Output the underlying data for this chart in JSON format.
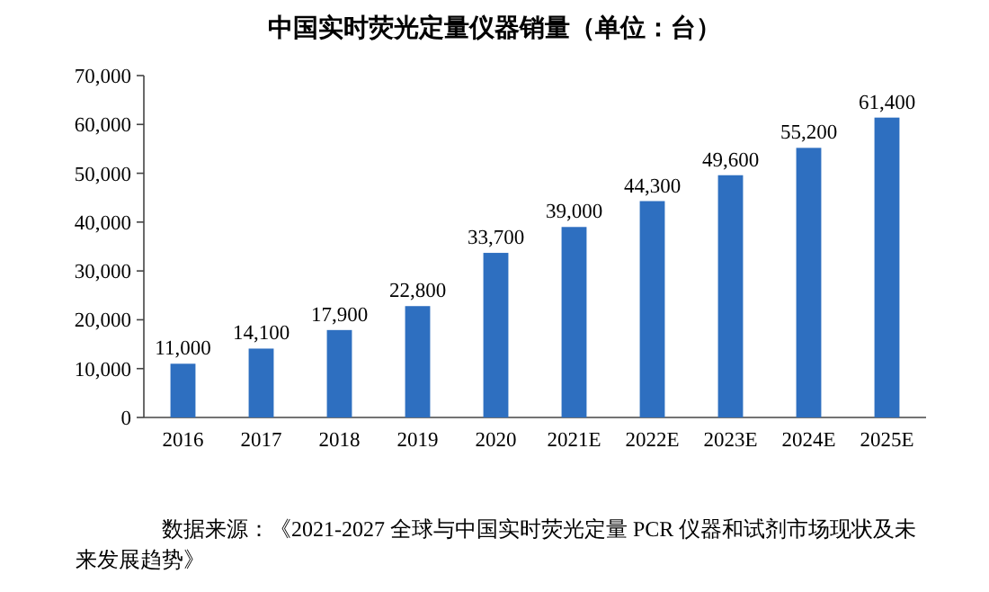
{
  "chart_data": {
    "type": "bar",
    "title": "中国实时荧光定量仪器销量（单位：台）",
    "categories": [
      "2016",
      "2017",
      "2018",
      "2019",
      "2020",
      "2021E",
      "2022E",
      "2023E",
      "2024E",
      "2025E"
    ],
    "values": [
      11000,
      14100,
      17900,
      22800,
      33700,
      39000,
      44300,
      49600,
      55200,
      61400
    ],
    "value_labels": [
      "11,000",
      "14,100",
      "17,900",
      "22,800",
      "33,700",
      "39,000",
      "44,300",
      "49,600",
      "55,200",
      "61,400"
    ],
    "color": "#2e6fc0",
    "ylim": [
      0,
      70000
    ],
    "yticks": [
      0,
      {
        "value": 10000,
        "label": "10,000"
      },
      {
        "value": 20000,
        "label": "20,000"
      },
      {
        "value": 30000,
        "label": "30,000"
      },
      {
        "value": 40000,
        "label": "40,000"
      },
      {
        "value": 50000,
        "label": "50,000"
      },
      {
        "value": 60000,
        "label": "60,000"
      },
      {
        "value": 70000,
        "label": "70,000"
      }
    ],
    "annotations": [
      "数据来源：《2021-2027 全球与中国实时荧光定量 PCR 仪器和试剂市场现状及未来发展趋势》"
    ]
  }
}
